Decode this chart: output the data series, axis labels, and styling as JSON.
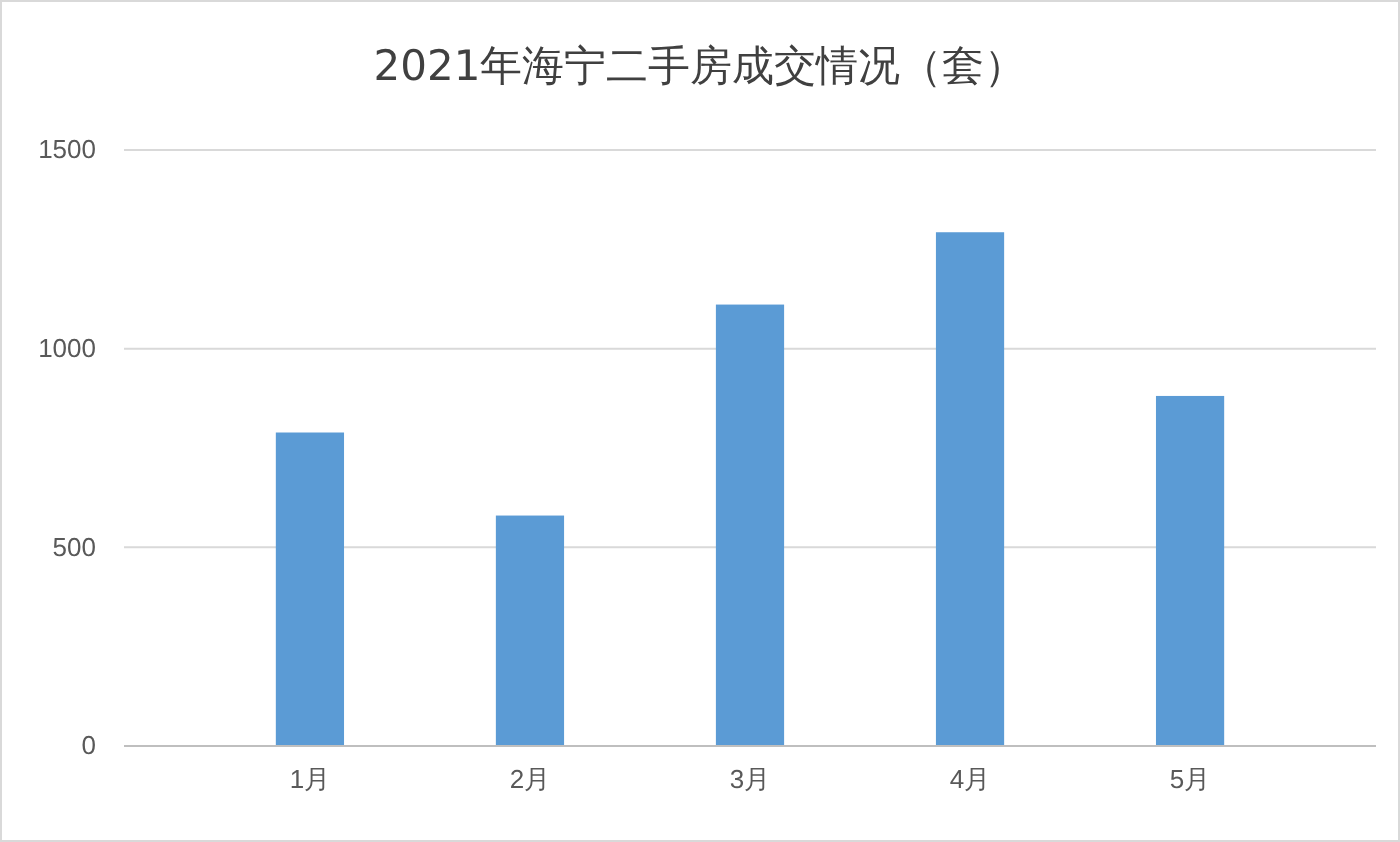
{
  "chart_data": {
    "type": "bar",
    "title": "2021年海宁二手房成交情况（套）",
    "categories": [
      "1月",
      "2月",
      "3月",
      "4月",
      "5月"
    ],
    "values": [
      789,
      580,
      1111,
      1293,
      881
    ],
    "color": "#5b9bd5",
    "ylim": [
      0,
      1500
    ],
    "yticks": [
      0,
      500,
      1000,
      1500
    ],
    "grid": "y"
  }
}
